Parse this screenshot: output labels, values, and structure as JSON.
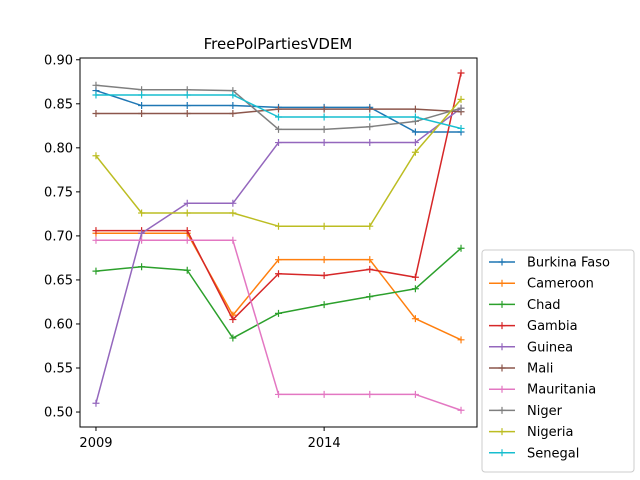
{
  "chart_data": {
    "type": "line",
    "title": "FreePolPartiesVDEM",
    "xlabel": "",
    "ylabel": "",
    "x": [
      2009,
      2010,
      2011,
      2012,
      2013,
      2014,
      2015,
      2016,
      2017
    ],
    "xlim": [
      2008.65,
      2017.35
    ],
    "ylim": [
      0.483,
      0.902
    ],
    "x_ticks": [
      2009,
      2014
    ],
    "x_tick_labels": [
      "2009",
      "2014"
    ],
    "y_ticks": [
      0.5,
      0.55,
      0.6,
      0.65,
      0.7,
      0.75,
      0.8,
      0.85,
      0.9
    ],
    "y_tick_labels": [
      "0.50",
      "0.55",
      "0.60",
      "0.65",
      "0.70",
      "0.75",
      "0.80",
      "0.85",
      "0.90"
    ],
    "grid": false,
    "legend_position": "outside lower right",
    "series": [
      {
        "name": "Burkina Faso",
        "color": "#1f77b4",
        "values": [
          0.865,
          0.848,
          0.848,
          0.848,
          0.846,
          0.846,
          0.846,
          0.818,
          0.818
        ]
      },
      {
        "name": "Cameroon",
        "color": "#ff7f0e",
        "values": [
          0.703,
          0.703,
          0.703,
          0.61,
          0.673,
          0.673,
          0.673,
          0.606,
          0.582
        ]
      },
      {
        "name": "Chad",
        "color": "#2ca02c",
        "values": [
          0.66,
          0.665,
          0.661,
          0.584,
          0.612,
          0.622,
          0.631,
          0.64,
          0.686
        ]
      },
      {
        "name": "Gambia",
        "color": "#d62728",
        "values": [
          0.706,
          0.706,
          0.706,
          0.605,
          0.657,
          0.655,
          0.662,
          0.653,
          0.885
        ]
      },
      {
        "name": "Guinea",
        "color": "#9467bd",
        "values": [
          0.51,
          0.703,
          0.737,
          0.737,
          0.806,
          0.806,
          0.806,
          0.806,
          0.845
        ]
      },
      {
        "name": "Mali",
        "color": "#8c564b",
        "values": [
          0.839,
          0.839,
          0.839,
          0.839,
          0.844,
          0.844,
          0.844,
          0.844,
          0.841
        ]
      },
      {
        "name": "Mauritania",
        "color": "#e377c2",
        "values": [
          0.695,
          0.695,
          0.695,
          0.695,
          0.52,
          0.52,
          0.52,
          0.52,
          0.502
        ]
      },
      {
        "name": "Niger",
        "color": "#7f7f7f",
        "values": [
          0.871,
          0.866,
          0.866,
          0.865,
          0.821,
          0.821,
          0.824,
          0.83,
          0.845
        ]
      },
      {
        "name": "Nigeria",
        "color": "#bcbd22",
        "values": [
          0.791,
          0.726,
          0.726,
          0.726,
          0.711,
          0.711,
          0.711,
          0.795,
          0.855
        ]
      },
      {
        "name": "Senegal",
        "color": "#17becf",
        "values": [
          0.86,
          0.86,
          0.86,
          0.86,
          0.835,
          0.835,
          0.835,
          0.835,
          0.822
        ]
      }
    ]
  }
}
